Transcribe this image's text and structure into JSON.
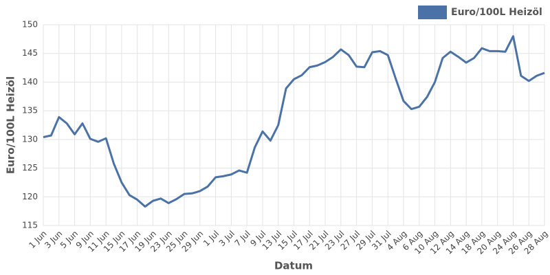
{
  "chart_data": {
    "type": "line",
    "x_label": "Datum",
    "y_label": "Euro/100L Heizöl",
    "categories": [
      "1 Jun",
      null,
      "3 Jun",
      null,
      "5 Jun",
      null,
      "9 Jun",
      null,
      "11 Jun",
      null,
      "15 Jun",
      null,
      "17 Jun",
      null,
      "19 Jun",
      null,
      "23 Jun",
      null,
      "25 Jun",
      null,
      "29 Jun",
      null,
      "1 Jul",
      null,
      "3 Jul",
      null,
      "7 Jul",
      null,
      "9 Jul",
      null,
      "13 Jul",
      null,
      "15 Jul",
      null,
      "17 Jul",
      null,
      "21 Jul",
      null,
      "23 Jul",
      null,
      "27 Jul",
      null,
      "29 Jul",
      null,
      "31 Jul",
      null,
      "4 Aug",
      null,
      "6 Aug",
      null,
      "10 Aug",
      null,
      "12 Aug",
      null,
      "14 Aug",
      null,
      "18 Aug",
      null,
      "20 Aug",
      null,
      "24 Aug",
      null,
      "26 Aug",
      null,
      "28 Aug"
    ],
    "series": [
      {
        "name": "Euro/100L Heizöl",
        "color": "#4a72a6",
        "values": [
          130.4,
          130.7,
          133.9,
          132.8,
          130.9,
          132.8,
          130.1,
          129.6,
          130.2,
          125.8,
          122.5,
          120.3,
          119.5,
          118.3,
          119.3,
          119.7,
          118.9,
          119.6,
          120.5,
          120.6,
          121.0,
          121.8,
          123.4,
          123.6,
          123.9,
          124.6,
          124.2,
          128.6,
          131.4,
          129.8,
          132.5,
          138.9,
          140.5,
          141.2,
          142.6,
          142.9,
          143.5,
          144.4,
          145.7,
          144.7,
          142.7,
          142.6,
          145.2,
          145.4,
          144.7,
          140.6,
          136.7,
          135.3,
          135.7,
          137.4,
          140.0,
          144.2,
          145.3,
          144.4,
          143.4,
          144.2,
          145.9,
          145.4,
          145.4,
          145.3,
          148.0,
          141.1,
          140.2,
          141.1,
          141.6
        ]
      }
    ],
    "ylim": [
      115,
      150
    ],
    "yticks": [
      115,
      120,
      125,
      130,
      135,
      140,
      145,
      150
    ],
    "grid": true,
    "legend": "top-right"
  }
}
